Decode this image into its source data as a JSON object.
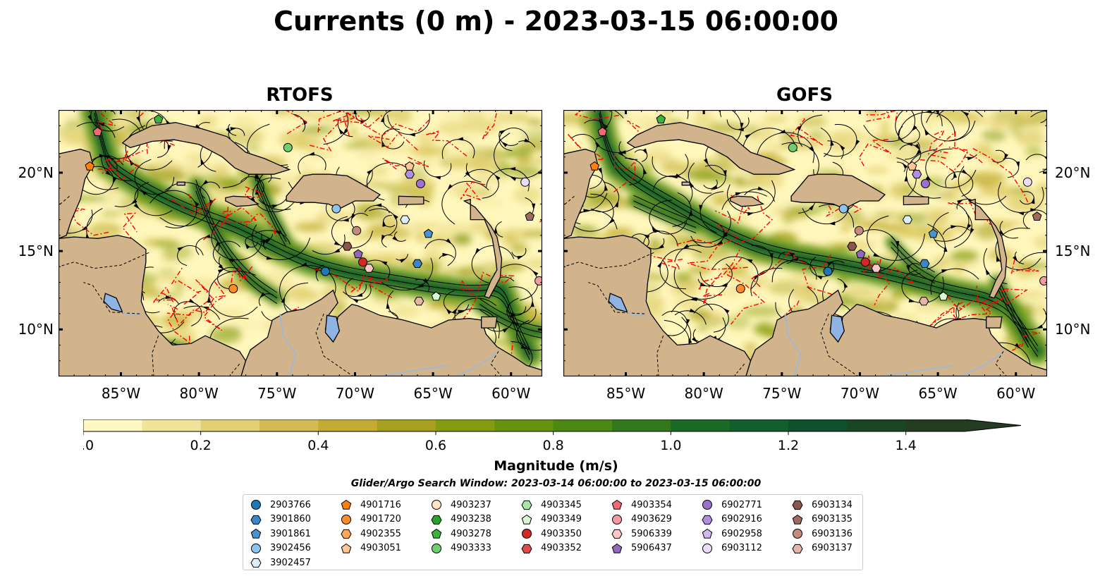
{
  "title": "Currents (0 m) - 2023-03-15 06:00:00",
  "panels": [
    {
      "title": "RTOFS"
    },
    {
      "title": "GOFS"
    }
  ],
  "map": {
    "lon_range": [
      -89.0,
      -58.0
    ],
    "lat_range": [
      7.0,
      24.0
    ],
    "x_ticks": [
      "85°W",
      "80°W",
      "75°W",
      "70°W",
      "65°W",
      "60°W"
    ],
    "y_ticks": [
      "20°N",
      "15°N",
      "10°N"
    ],
    "land_color": "#d2b48c",
    "water_low_color": "#fff7bc",
    "current_color": "#1b7a2e",
    "eez_color": "#ff0000"
  },
  "colorbar": {
    "label": "Magnitude (m/s)",
    "ticks": [
      "0.0",
      "0.2",
      "0.4",
      "0.6",
      "0.8",
      "1.0",
      "1.2",
      "1.4"
    ],
    "min": 0.0,
    "max": 1.5,
    "step": 0.1,
    "colors": [
      "#fff8c4",
      "#f1e49a",
      "#e3cf74",
      "#d4ba52",
      "#c4ab33",
      "#a6a01e",
      "#849c12",
      "#66920f",
      "#4d8716",
      "#33791c",
      "#1a6b25",
      "#115f2c",
      "#0f512b",
      "#1a4626",
      "#243c22"
    ],
    "extend": "max"
  },
  "search_window": "Glider/Argo Search Window: 2023-03-14 06:00:00 to 2023-03-15 06:00:00",
  "legend": [
    [
      {
        "id": "2903766",
        "marker": "circle",
        "color": "#1f77b4"
      },
      {
        "id": "3901860",
        "marker": "hexagon",
        "color": "#3d86c6"
      },
      {
        "id": "3901861",
        "marker": "pentagon",
        "color": "#4a91d0"
      },
      {
        "id": "3902456",
        "marker": "circle",
        "color": "#8fc3ef"
      },
      {
        "id": "3902457",
        "marker": "hexagon",
        "color": "#dbeefc"
      }
    ],
    [
      {
        "id": "4901716",
        "marker": "pentagon",
        "color": "#ff7f0e"
      },
      {
        "id": "4901720",
        "marker": "circle",
        "color": "#ff8c2a"
      },
      {
        "id": "4902355",
        "marker": "hexagon",
        "color": "#ffa85a"
      },
      {
        "id": "4903051",
        "marker": "pentagon",
        "color": "#ffc795"
      }
    ],
    [
      {
        "id": "4903237",
        "marker": "circle",
        "color": "#ffe1c6"
      },
      {
        "id": "4903238",
        "marker": "hexagon",
        "color": "#2ca02c"
      },
      {
        "id": "4903278",
        "marker": "pentagon",
        "color": "#3cb43c"
      },
      {
        "id": "4903333",
        "marker": "circle",
        "color": "#6fcf6f"
      }
    ],
    [
      {
        "id": "4903345",
        "marker": "hexagon",
        "color": "#a6e8a0"
      },
      {
        "id": "4903349",
        "marker": "pentagon",
        "color": "#d9f7d2"
      },
      {
        "id": "4903350",
        "marker": "circle",
        "color": "#d62728"
      },
      {
        "id": "4903352",
        "marker": "hexagon",
        "color": "#e24a4a"
      }
    ],
    [
      {
        "id": "4903354",
        "marker": "pentagon",
        "color": "#ef6b72"
      },
      {
        "id": "4903629",
        "marker": "circle",
        "color": "#f59aa0"
      },
      {
        "id": "5906339",
        "marker": "hexagon",
        "color": "#fcc7c9"
      },
      {
        "id": "5906437",
        "marker": "pentagon",
        "color": "#9467bd"
      }
    ],
    [
      {
        "id": "6902771",
        "marker": "circle",
        "color": "#9d6fcf"
      },
      {
        "id": "6902916",
        "marker": "hexagon",
        "color": "#b08ee0"
      },
      {
        "id": "6902958",
        "marker": "pentagon",
        "color": "#d0b7f0"
      },
      {
        "id": "6903112",
        "marker": "circle",
        "color": "#ecdcfb"
      }
    ],
    [
      {
        "id": "6903134",
        "marker": "hexagon",
        "color": "#8c564b"
      },
      {
        "id": "6903135",
        "marker": "pentagon",
        "color": "#a06a5d"
      },
      {
        "id": "6903136",
        "marker": "circle",
        "color": "#c58a7c"
      },
      {
        "id": "6903137",
        "marker": "hexagon",
        "color": "#e4b5a8"
      }
    ]
  ],
  "floats": [
    {
      "id": "2903766",
      "lon": -71.9,
      "lat": 13.7
    },
    {
      "id": "3901861",
      "lon": -65.3,
      "lat": 16.1
    },
    {
      "id": "3902456",
      "lon": -71.2,
      "lat": 17.7
    },
    {
      "id": "3902457",
      "lon": -66.8,
      "lat": 17.0
    },
    {
      "id": "4901716",
      "lon": -87.0,
      "lat": 20.4
    },
    {
      "id": "4901720",
      "lon": -77.8,
      "lat": 12.6
    },
    {
      "id": "4903278",
      "lon": -82.6,
      "lat": 23.4
    },
    {
      "id": "4903333",
      "lon": -74.3,
      "lat": 21.6
    },
    {
      "id": "4903349",
      "lon": -64.8,
      "lat": 12.1
    },
    {
      "id": "4903350",
      "lon": -69.5,
      "lat": 14.3
    },
    {
      "id": "4903354",
      "lon": -86.5,
      "lat": 22.6
    },
    {
      "id": "5906339",
      "lon": -69.1,
      "lat": 13.9
    },
    {
      "id": "5906437",
      "lon": -69.8,
      "lat": 14.8
    },
    {
      "id": "6902771",
      "lon": -65.8,
      "lat": 19.3
    },
    {
      "id": "6902916",
      "lon": -66.5,
      "lat": 19.9
    },
    {
      "id": "6903112",
      "lon": -59.1,
      "lat": 19.4
    },
    {
      "id": "6903134",
      "lon": -70.5,
      "lat": 15.3
    },
    {
      "id": "6903135",
      "lon": -58.8,
      "lat": 17.2
    },
    {
      "id": "6903136",
      "lon": -69.9,
      "lat": 16.3
    },
    {
      "id": "6903137",
      "lon": -65.9,
      "lat": 11.8
    },
    {
      "id": "3901860",
      "lon": -66.0,
      "lat": 14.2
    },
    {
      "id": "4903051",
      "lon": -66.5,
      "lat": 20.4
    },
    {
      "id": "4903629",
      "lon": -58.2,
      "lat": 13.1
    }
  ]
}
